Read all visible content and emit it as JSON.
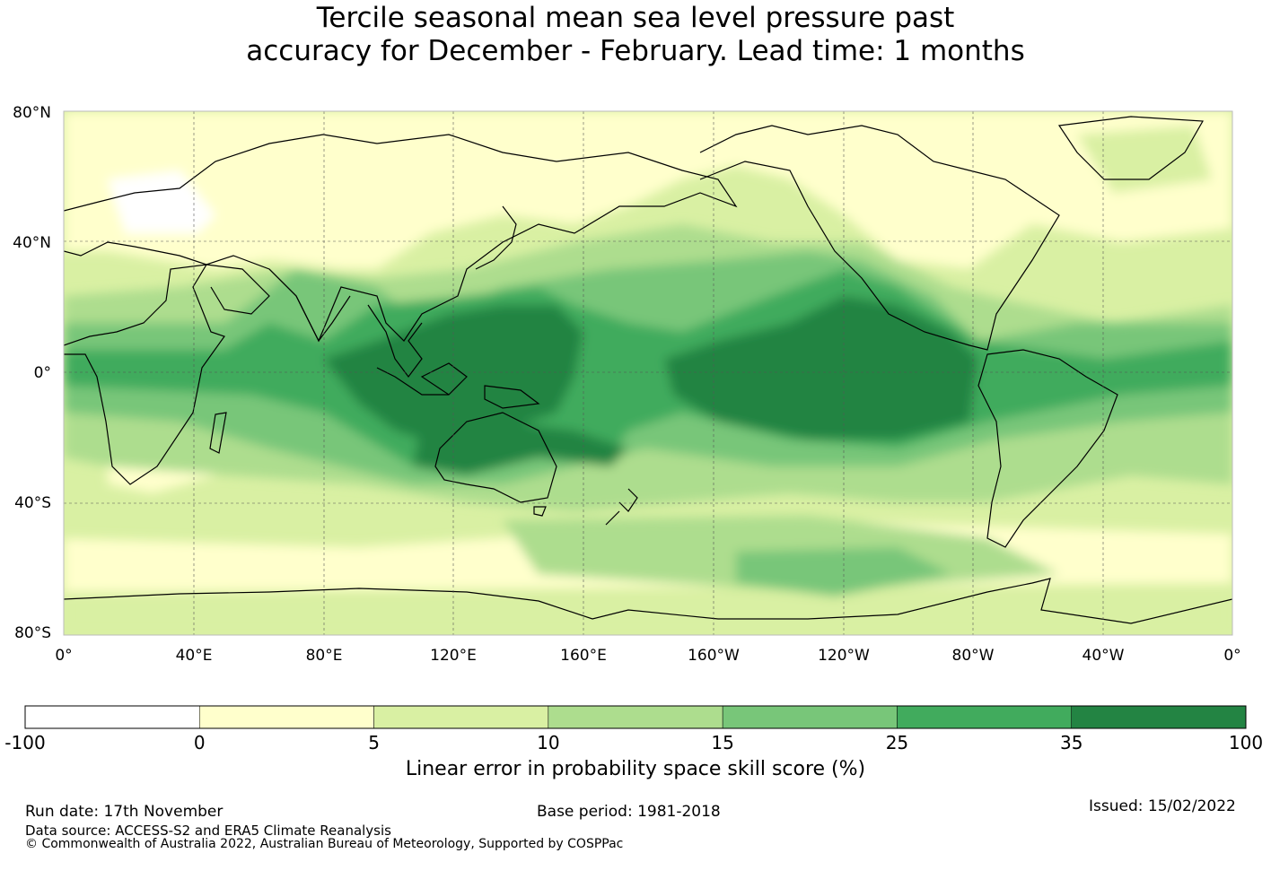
{
  "title": {
    "line1": "Tercile seasonal mean sea level pressure past",
    "line2": "accuracy for December - February. Lead time: 1 months"
  },
  "map": {
    "lat_labels": [
      "80°N",
      "40°N",
      "0°",
      "40°S",
      "80°S"
    ],
    "lon_labels": [
      "0°",
      "40°E",
      "80°E",
      "120°E",
      "160°E",
      "160°W",
      "120°W",
      "80°W",
      "40°W",
      "0°"
    ],
    "extent": {
      "lon": [
        0,
        360
      ],
      "lat": [
        -80,
        80
      ]
    },
    "grid": true
  },
  "colorbar": {
    "ticks": [
      "-100",
      "0",
      "5",
      "10",
      "15",
      "25",
      "35",
      "100"
    ],
    "colors": [
      "#ffffff",
      "#ffffcc",
      "#d9f0a3",
      "#addd8e",
      "#78c679",
      "#41ab5d",
      "#238443"
    ],
    "label": "Linear error in probability space skill score (%)"
  },
  "footer": {
    "run_date": "Run date: 17th November",
    "base_period": "Base period: 1981-2018",
    "issued": "Issued: 15/02/2022",
    "data_source": "Data source: ACCESS-S2 and ERA5 Climate Reanalysis",
    "copyright": "© Commonwealth of Australia 2022, Australian Bureau of Meteorology, Supported by COSPPac"
  }
}
